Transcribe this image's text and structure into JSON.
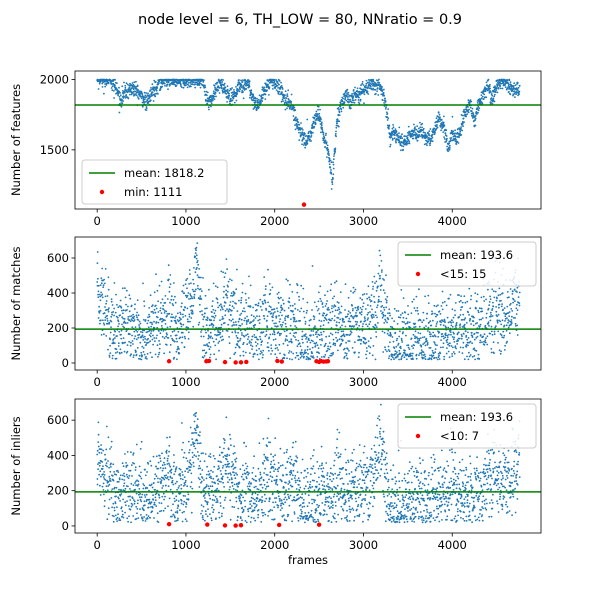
{
  "figure_title": "node level = 6, TH_LOW = 80, NNratio = 0.9",
  "colors": {
    "scatter": "#1f77b4",
    "mean_line": "#008000",
    "highlight": "#ff0000",
    "legend_border": "#cccccc"
  },
  "chart_data": [
    {
      "id": "features",
      "type": "scatter",
      "title": "",
      "xlabel": "",
      "ylabel": "Number of features",
      "xlim": [
        -250,
        5000
      ],
      "ylim": [
        1080,
        2060
      ],
      "xticks": [
        0,
        1000,
        2000,
        3000,
        4000
      ],
      "yticks": [
        1500,
        2000
      ],
      "legend_position": "lower-left",
      "mean": {
        "label": "mean: 1818.2",
        "value": 1818.2
      },
      "min": {
        "label": "min: 1111",
        "points": [
          [
            2330,
            1111
          ]
        ]
      },
      "series_keyframes": [
        [
          0,
          2000
        ],
        [
          150,
          1995
        ],
        [
          220,
          1930
        ],
        [
          260,
          1850
        ],
        [
          300,
          1900
        ],
        [
          400,
          1940
        ],
        [
          500,
          1880
        ],
        [
          560,
          1830
        ],
        [
          620,
          1910
        ],
        [
          700,
          1980
        ],
        [
          800,
          2000
        ],
        [
          900,
          1995
        ],
        [
          1000,
          1990
        ],
        [
          1100,
          2000
        ],
        [
          1200,
          1990
        ],
        [
          1230,
          1850
        ],
        [
          1300,
          1860
        ],
        [
          1350,
          1940
        ],
        [
          1400,
          1960
        ],
        [
          1450,
          1900
        ],
        [
          1500,
          1870
        ],
        [
          1560,
          1900
        ],
        [
          1600,
          1980
        ],
        [
          1650,
          1940
        ],
        [
          1700,
          1980
        ],
        [
          1750,
          1860
        ],
        [
          1800,
          1810
        ],
        [
          1850,
          1860
        ],
        [
          1900,
          1950
        ],
        [
          1950,
          1990
        ],
        [
          2000,
          1980
        ],
        [
          2050,
          1950
        ],
        [
          2100,
          1870
        ],
        [
          2150,
          1850
        ],
        [
          2200,
          1800
        ],
        [
          2250,
          1700
        ],
        [
          2300,
          1620
        ],
        [
          2350,
          1560
        ],
        [
          2400,
          1600
        ],
        [
          2450,
          1720
        ],
        [
          2500,
          1750
        ],
        [
          2550,
          1600
        ],
        [
          2600,
          1500
        ],
        [
          2650,
          1280
        ],
        [
          2700,
          1700
        ],
        [
          2750,
          1820
        ],
        [
          2800,
          1900
        ],
        [
          2850,
          1840
        ],
        [
          2900,
          1900
        ],
        [
          2950,
          1890
        ],
        [
          3000,
          1920
        ],
        [
          3050,
          1950
        ],
        [
          3100,
          1980
        ],
        [
          3150,
          1960
        ],
        [
          3200,
          1940
        ],
        [
          3250,
          1820
        ],
        [
          3300,
          1600
        ],
        [
          3350,
          1620
        ],
        [
          3400,
          1580
        ],
        [
          3450,
          1540
        ],
        [
          3500,
          1580
        ],
        [
          3550,
          1620
        ],
        [
          3600,
          1610
        ],
        [
          3650,
          1640
        ],
        [
          3700,
          1600
        ],
        [
          3750,
          1560
        ],
        [
          3800,
          1650
        ],
        [
          3850,
          1720
        ],
        [
          3900,
          1680
        ],
        [
          3950,
          1500
        ],
        [
          4000,
          1630
        ],
        [
          4050,
          1560
        ],
        [
          4100,
          1680
        ],
        [
          4150,
          1760
        ],
        [
          4200,
          1830
        ],
        [
          4250,
          1700
        ],
        [
          4300,
          1840
        ],
        [
          4350,
          1880
        ],
        [
          4400,
          1960
        ],
        [
          4450,
          1850
        ],
        [
          4500,
          1970
        ],
        [
          4550,
          1990
        ],
        [
          4600,
          1980
        ],
        [
          4650,
          1940
        ],
        [
          4700,
          1930
        ],
        [
          4760,
          1930
        ]
      ],
      "noise": 30,
      "clip_max": 2000
    },
    {
      "id": "matches",
      "type": "scatter",
      "title": "",
      "xlabel": "",
      "ylabel": "Number of matches",
      "xlim": [
        -250,
        5000
      ],
      "ylim": [
        -40,
        720
      ],
      "xticks": [
        0,
        1000,
        2000,
        3000,
        4000
      ],
      "yticks": [
        0,
        200,
        400,
        600
      ],
      "legend_position": "upper-right",
      "mean": {
        "label": "mean: 193.6",
        "value": 193.6
      },
      "min": {
        "label": "<15: 15",
        "points": [
          [
            810,
            10
          ],
          [
            1230,
            10
          ],
          [
            1260,
            12
          ],
          [
            1440,
            5
          ],
          [
            1560,
            3
          ],
          [
            1620,
            4
          ],
          [
            1680,
            6
          ],
          [
            2030,
            12
          ],
          [
            2080,
            8
          ],
          [
            2470,
            10
          ],
          [
            2500,
            6
          ],
          [
            2520,
            11
          ],
          [
            2550,
            8
          ],
          [
            2580,
            9
          ],
          [
            2600,
            10
          ]
        ]
      },
      "series_keyframes": [
        [
          0,
          380
        ],
        [
          100,
          330
        ],
        [
          200,
          180
        ],
        [
          300,
          200
        ],
        [
          400,
          210
        ],
        [
          500,
          150
        ],
        [
          600,
          180
        ],
        [
          700,
          230
        ],
        [
          800,
          320
        ],
        [
          900,
          160
        ],
        [
          1000,
          240
        ],
        [
          1080,
          400
        ],
        [
          1120,
          600
        ],
        [
          1150,
          380
        ],
        [
          1200,
          180
        ],
        [
          1300,
          220
        ],
        [
          1400,
          260
        ],
        [
          1450,
          380
        ],
        [
          1500,
          300
        ],
        [
          1600,
          180
        ],
        [
          1700,
          230
        ],
        [
          1800,
          160
        ],
        [
          1900,
          260
        ],
        [
          2000,
          220
        ],
        [
          2100,
          200
        ],
        [
          2200,
          260
        ],
        [
          2300,
          140
        ],
        [
          2400,
          120
        ],
        [
          2500,
          220
        ],
        [
          2600,
          180
        ],
        [
          2700,
          250
        ],
        [
          2800,
          160
        ],
        [
          2900,
          220
        ],
        [
          3000,
          210
        ],
        [
          3100,
          240
        ],
        [
          3200,
          430
        ],
        [
          3250,
          300
        ],
        [
          3300,
          100
        ],
        [
          3400,
          120
        ],
        [
          3500,
          140
        ],
        [
          3600,
          160
        ],
        [
          3700,
          130
        ],
        [
          3800,
          150
        ],
        [
          3900,
          180
        ],
        [
          4000,
          190
        ],
        [
          4100,
          200
        ],
        [
          4200,
          170
        ],
        [
          4300,
          200
        ],
        [
          4400,
          260
        ],
        [
          4500,
          300
        ],
        [
          4600,
          240
        ],
        [
          4700,
          330
        ],
        [
          4760,
          380
        ]
      ],
      "noise": 110,
      "clip_max": 690
    },
    {
      "id": "inliers",
      "type": "scatter",
      "title": "",
      "xlabel": "frames",
      "ylabel": "Number of inliers",
      "xlim": [
        -250,
        5000
      ],
      "ylim": [
        -40,
        720
      ],
      "xticks": [
        0,
        1000,
        2000,
        3000,
        4000
      ],
      "yticks": [
        0,
        200,
        400,
        600
      ],
      "legend_position": "upper-right",
      "mean": {
        "label": "mean: 193.6",
        "value": 193.6
      },
      "min": {
        "label": "<10: 7",
        "points": [
          [
            810,
            10
          ],
          [
            1240,
            8
          ],
          [
            1440,
            3
          ],
          [
            1560,
            2
          ],
          [
            1620,
            4
          ],
          [
            2050,
            6
          ],
          [
            2500,
            7
          ]
        ]
      },
      "series_keyframes": [
        [
          0,
          380
        ],
        [
          100,
          330
        ],
        [
          200,
          180
        ],
        [
          300,
          200
        ],
        [
          400,
          210
        ],
        [
          500,
          150
        ],
        [
          600,
          180
        ],
        [
          700,
          230
        ],
        [
          800,
          320
        ],
        [
          900,
          160
        ],
        [
          1000,
          240
        ],
        [
          1080,
          400
        ],
        [
          1120,
          600
        ],
        [
          1150,
          380
        ],
        [
          1200,
          180
        ],
        [
          1300,
          220
        ],
        [
          1400,
          260
        ],
        [
          1450,
          380
        ],
        [
          1500,
          300
        ],
        [
          1600,
          180
        ],
        [
          1700,
          230
        ],
        [
          1800,
          160
        ],
        [
          1900,
          260
        ],
        [
          2000,
          220
        ],
        [
          2100,
          200
        ],
        [
          2200,
          260
        ],
        [
          2300,
          140
        ],
        [
          2400,
          120
        ],
        [
          2500,
          220
        ],
        [
          2600,
          180
        ],
        [
          2700,
          250
        ],
        [
          2800,
          160
        ],
        [
          2900,
          220
        ],
        [
          3000,
          210
        ],
        [
          3100,
          240
        ],
        [
          3200,
          430
        ],
        [
          3250,
          300
        ],
        [
          3300,
          100
        ],
        [
          3400,
          120
        ],
        [
          3500,
          140
        ],
        [
          3600,
          160
        ],
        [
          3700,
          130
        ],
        [
          3800,
          150
        ],
        [
          3900,
          180
        ],
        [
          4000,
          190
        ],
        [
          4100,
          200
        ],
        [
          4200,
          170
        ],
        [
          4300,
          200
        ],
        [
          4400,
          260
        ],
        [
          4500,
          300
        ],
        [
          4600,
          240
        ],
        [
          4700,
          330
        ],
        [
          4760,
          380
        ]
      ],
      "noise": 110,
      "clip_max": 690
    }
  ]
}
